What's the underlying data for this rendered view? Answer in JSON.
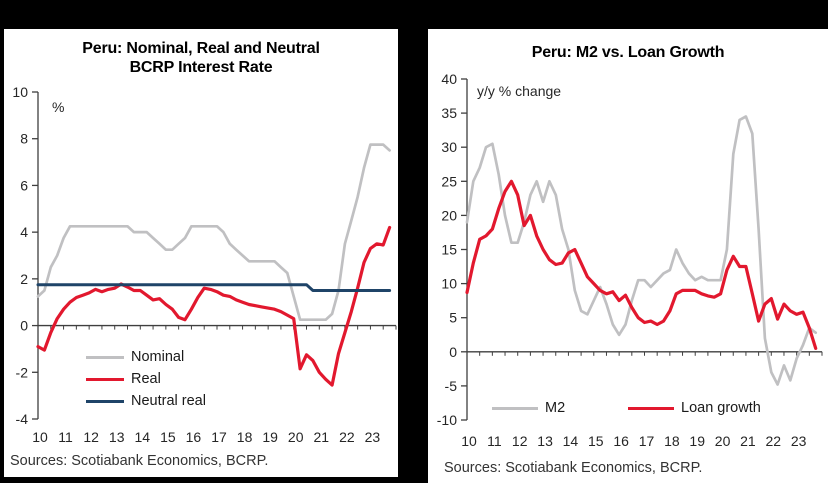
{
  "page": {
    "frame_color": "#000000",
    "panel_color": "#ffffff",
    "text_color": "#262626",
    "axis_color": "#3f3f3f"
  },
  "source_note": "Sources: Scotiabank Economics, BCRP.",
  "chart_data": [
    {
      "type": "line",
      "title_lines": [
        "Peru: Nominal, Real and Neutral",
        "BCRP Interest Rate"
      ],
      "unit_label": "%",
      "x_start": 2010,
      "x_end": 2024,
      "x_step": 0.25,
      "x_tick_labels": [
        "10",
        "11",
        "12",
        "13",
        "14",
        "15",
        "16",
        "17",
        "18",
        "19",
        "20",
        "21",
        "22",
        "23"
      ],
      "ylim": [
        -4,
        10
      ],
      "y_tick_step": 2,
      "y_tick_labels": [
        "-4",
        "-2",
        "0",
        "2",
        "4",
        "6",
        "8",
        "10"
      ],
      "grid": false,
      "legend_position": "inside-lower-left",
      "series": [
        {
          "name": "Nominal",
          "color": "#c0c0c2",
          "width": 2.7,
          "values": [
            1.25,
            1.5,
            2.5,
            3.0,
            3.75,
            4.25,
            4.25,
            4.25,
            4.25,
            4.25,
            4.25,
            4.25,
            4.25,
            4.25,
            4.25,
            4.0,
            4.0,
            4.0,
            3.75,
            3.5,
            3.25,
            3.25,
            3.5,
            3.75,
            4.25,
            4.25,
            4.25,
            4.25,
            4.25,
            4.0,
            3.5,
            3.25,
            3.0,
            2.75,
            2.75,
            2.75,
            2.75,
            2.75,
            2.5,
            2.25,
            1.25,
            0.25,
            0.25,
            0.25,
            0.25,
            0.25,
            0.5,
            1.5,
            3.5,
            4.5,
            5.5,
            6.75,
            7.75,
            7.75,
            7.75,
            7.5
          ]
        },
        {
          "name": "Real",
          "color": "#e2182e",
          "width": 3.2,
          "values": [
            -0.9,
            -1.05,
            -0.3,
            0.3,
            0.7,
            1.0,
            1.2,
            1.3,
            1.4,
            1.55,
            1.45,
            1.55,
            1.6,
            1.78,
            1.65,
            1.5,
            1.5,
            1.3,
            1.1,
            1.15,
            0.9,
            0.7,
            0.35,
            0.25,
            0.7,
            1.2,
            1.6,
            1.55,
            1.45,
            1.3,
            1.25,
            1.1,
            1.0,
            0.9,
            0.85,
            0.8,
            0.75,
            0.7,
            0.6,
            0.45,
            0.3,
            -1.85,
            -1.25,
            -1.5,
            -2.0,
            -2.3,
            -2.55,
            -1.2,
            -0.3,
            0.6,
            1.6,
            2.7,
            3.3,
            3.5,
            3.45,
            4.2
          ]
        },
        {
          "name": "Neutral real",
          "color": "#1f4468",
          "width": 3.0,
          "values": [
            1.75,
            1.75,
            1.75,
            1.75,
            1.75,
            1.75,
            1.75,
            1.75,
            1.75,
            1.75,
            1.75,
            1.75,
            1.75,
            1.75,
            1.75,
            1.75,
            1.75,
            1.75,
            1.75,
            1.75,
            1.75,
            1.75,
            1.75,
            1.75,
            1.75,
            1.75,
            1.75,
            1.75,
            1.75,
            1.75,
            1.75,
            1.75,
            1.75,
            1.75,
            1.75,
            1.75,
            1.75,
            1.75,
            1.75,
            1.75,
            1.75,
            1.75,
            1.75,
            1.5,
            1.5,
            1.5,
            1.5,
            1.5,
            1.5,
            1.5,
            1.5,
            1.5,
            1.5,
            1.5,
            1.5,
            1.5
          ]
        }
      ]
    },
    {
      "type": "line",
      "title_lines": [
        "Peru: M2 vs. Loan Growth"
      ],
      "unit_label": "y/y % change",
      "x_start": 2010,
      "x_end": 2024,
      "x_step": 0.25,
      "x_tick_labels": [
        "10",
        "11",
        "12",
        "13",
        "14",
        "15",
        "16",
        "17",
        "18",
        "19",
        "20",
        "21",
        "22",
        "23"
      ],
      "ylim": [
        -10,
        40
      ],
      "y_tick_step": 5,
      "y_tick_labels": [
        "-10",
        "-5",
        "0",
        "5",
        "10",
        "15",
        "20",
        "25",
        "30",
        "35",
        "40"
      ],
      "grid": false,
      "legend_position": "inside-bottom-horizontal",
      "series": [
        {
          "name": "M2",
          "color": "#c0c0c2",
          "width": 2.7,
          "values": [
            19,
            25,
            27,
            30,
            30.5,
            26,
            20,
            16,
            16,
            19,
            23,
            25,
            22,
            25,
            23,
            18,
            15,
            9,
            6,
            5.5,
            7.5,
            9.5,
            7,
            4,
            2.5,
            4,
            7.5,
            10.5,
            10.5,
            9.5,
            10.5,
            11.5,
            12,
            15,
            13,
            11.5,
            10.5,
            11,
            10.5,
            10.5,
            10.5,
            15,
            29,
            34,
            34.5,
            32,
            18,
            2,
            -3,
            -4.8,
            -2,
            -4.2,
            -1,
            1,
            3.5,
            2.8
          ]
        },
        {
          "name": "Loan growth",
          "color": "#e2182e",
          "width": 3.2,
          "values": [
            8.7,
            13,
            16.5,
            17,
            18,
            21,
            23.5,
            25,
            23,
            18.5,
            20,
            17,
            15,
            13.5,
            12.8,
            13,
            14.5,
            15,
            13,
            11,
            10,
            9,
            8.5,
            8.8,
            7.5,
            8.3,
            6.5,
            5,
            4.3,
            4.5,
            4,
            4.5,
            6,
            8.5,
            9,
            9,
            9,
            8.5,
            8.2,
            8,
            8.5,
            12,
            14,
            12.5,
            12.5,
            8.5,
            4.5,
            7,
            7.8,
            4.8,
            7,
            6,
            5.5,
            5.8,
            3.5,
            0.5
          ]
        }
      ]
    }
  ]
}
